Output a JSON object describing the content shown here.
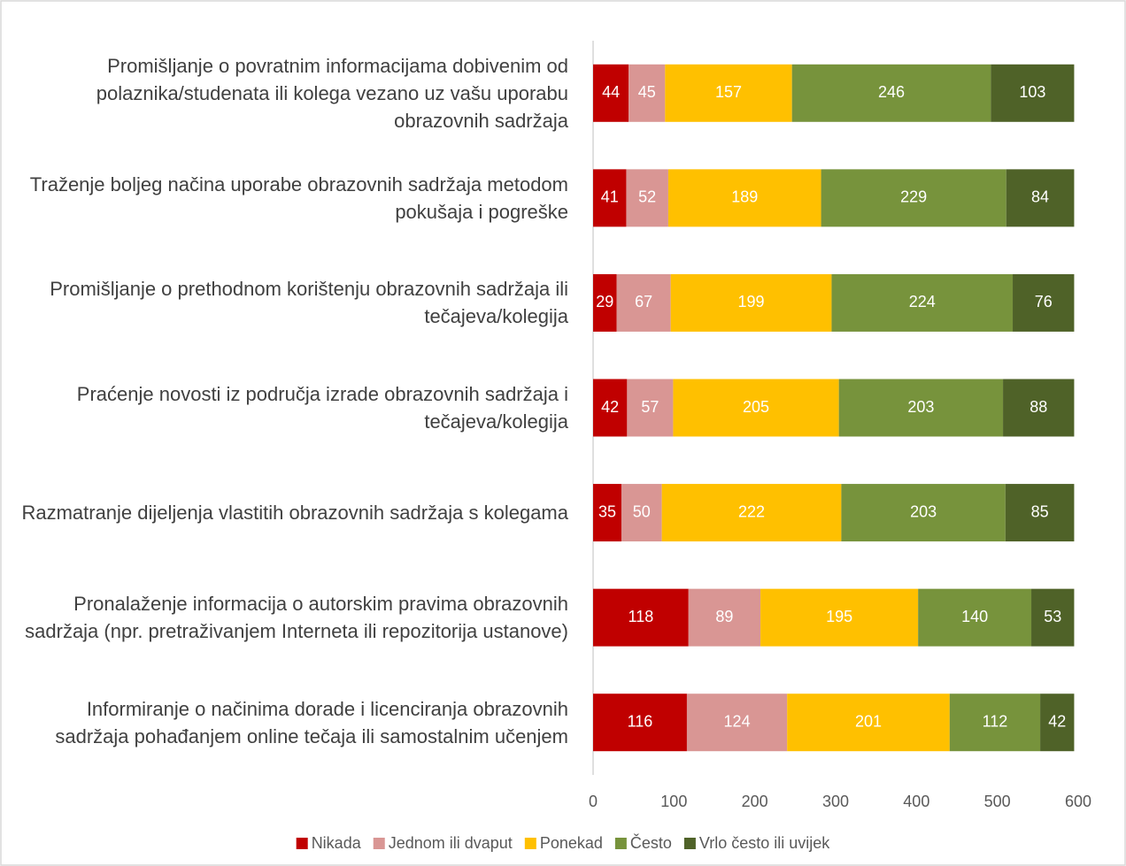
{
  "chart_data": {
    "type": "stacked_barh",
    "categories": [
      "Promišljanje o povratnim informacijama dobivenim od polaznika/studenata ili kolega vezano uz vašu uporabu obrazovnih sadržaja",
      "Traženje boljeg načina uporabe obrazovnih sadržaja metodom pokušaja i pogreške",
      "Promišljanje o prethodnom korištenju obrazovnih sadržaja ili tečajeva/kolegija",
      "Praćenje novosti iz područja izrade obrazovnih sadržaja i tečajeva/kolegija",
      "Razmatranje dijeljenja vlastitih obrazovnih sadržaja s kolegama",
      "Pronalaženje informacija o autorskim pravima obrazovnih sadržaja (npr. pretraživanjem Interneta ili repozitorija ustanove)",
      "Informiranje o načinima dorade i licenciranja obrazovnih sadržaja pohađanjem online tečaja ili samostalnim učenjem"
    ],
    "series": [
      {
        "name": "Nikada",
        "color": "#c00000",
        "values": [
          44,
          41,
          29,
          42,
          35,
          118,
          116
        ]
      },
      {
        "name": "Jednom ili dvaput",
        "color": "#d99694",
        "values": [
          45,
          52,
          67,
          57,
          50,
          89,
          124
        ]
      },
      {
        "name": "Ponekad",
        "color": "#ffc000",
        "values": [
          157,
          189,
          199,
          205,
          222,
          195,
          201
        ]
      },
      {
        "name": "Često",
        "color": "#77933c",
        "values": [
          246,
          229,
          224,
          203,
          203,
          140,
          112
        ]
      },
      {
        "name": "Vrlo često ili uvijek",
        "color": "#4f6228",
        "values": [
          103,
          84,
          76,
          88,
          85,
          53,
          42
        ]
      }
    ],
    "xlim": [
      0,
      600
    ],
    "xticks": [
      0,
      100,
      200,
      300,
      400,
      500,
      600
    ],
    "grid": false,
    "legend": "bottom"
  }
}
